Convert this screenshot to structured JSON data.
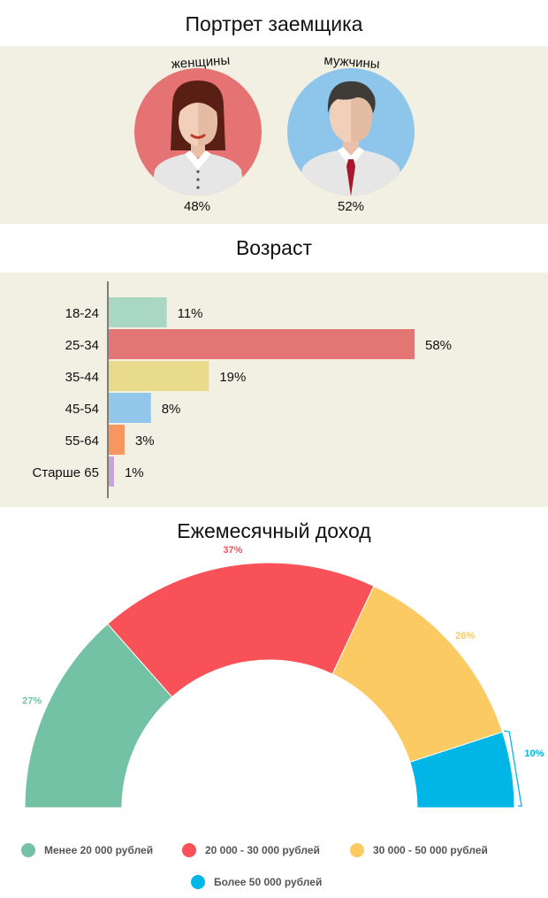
{
  "portrait": {
    "title": "Портрет заемщика",
    "women_label": "женщины",
    "men_label": "мужчины",
    "women_pct": "48%",
    "men_pct": "52%",
    "women_color": "#e57373",
    "men_color": "#8ec5ea"
  },
  "age": {
    "title": "Возраст"
  },
  "income": {
    "title": "Ежемесячный доход",
    "legend": [
      {
        "label": "Менее 20 000 рублей",
        "color": "#73c2a6"
      },
      {
        "label": "20 000 - 30 000 рублей",
        "color": "#f85258"
      },
      {
        "label": "30 000 - 50 000 рублей",
        "color": "#fcca62"
      },
      {
        "label": "Более 50 000 рублей",
        "color": "#00b6e6"
      }
    ]
  },
  "chart_data": [
    {
      "type": "bar",
      "orientation": "horizontal",
      "title": "Возраст",
      "categories": [
        "18-24",
        "25-34",
        "35-44",
        "45-54",
        "55-64",
        "Старше 65"
      ],
      "values": [
        11,
        58,
        19,
        8,
        3,
        1
      ],
      "value_labels": [
        "11%",
        "58%",
        "19%",
        "8%",
        "3%",
        "1%"
      ],
      "colors": [
        "#a8d8c3",
        "#e37675",
        "#e8db8c",
        "#92c6eb",
        "#f79660",
        "#c4a6d8"
      ],
      "xlim": [
        0,
        58
      ],
      "grid": false
    },
    {
      "type": "pie",
      "subtype": "semicircle-donut",
      "title": "Ежемесячный доход",
      "categories": [
        "Менее 20 000 рублей",
        "20 000 - 30 000 рублей",
        "30 000 - 50 000 рублей",
        "Более 50 000 рублей"
      ],
      "values": [
        27,
        37,
        26,
        10
      ],
      "value_labels": [
        "27%",
        "37%",
        "26%",
        "10%"
      ],
      "colors": [
        "#73c2a6",
        "#f85258",
        "#fcca62",
        "#00b6e6"
      ],
      "legend": "bottom"
    }
  ]
}
